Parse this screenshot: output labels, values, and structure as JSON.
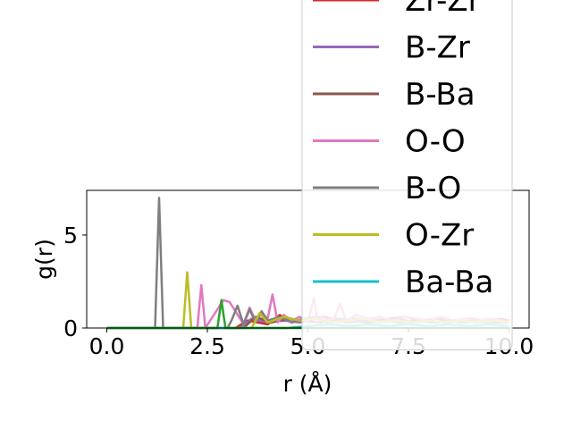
{
  "chart_data": {
    "type": "line",
    "title": "",
    "xlabel": "r (Å)",
    "ylabel": "g(r)",
    "xlim": [
      -0.5,
      10.5
    ],
    "ylim": [
      0,
      7.4
    ],
    "xticks": [
      0.0,
      2.5,
      5.0,
      7.5,
      10.0
    ],
    "xtick_labels": [
      "0.0",
      "2.5",
      "5.0",
      "7.5",
      "10.0"
    ],
    "yticks": [
      0,
      5
    ],
    "ytick_labels": [
      "0",
      "5"
    ],
    "grid": false,
    "legend_position": "upper-right",
    "series": [
      {
        "name": "Zr-Zr",
        "color": "#d62728",
        "x": [
          0,
          3.2,
          3.5,
          4.0,
          4.3,
          4.6,
          5.0,
          5.4,
          5.8,
          6.2,
          6.6,
          7.0,
          7.4,
          7.8,
          8.2,
          8.6,
          9.0,
          9.4,
          9.8,
          10.0
        ],
        "y": [
          0,
          0,
          0.4,
          0.2,
          0.7,
          0.3,
          0.5,
          0.6,
          0.4,
          0.5,
          0.4,
          0.5,
          0.6,
          0.4,
          0.5,
          0.4,
          0.5,
          0.4,
          0.5,
          0.4
        ]
      },
      {
        "name": "B-Zr",
        "color": "#9467bd",
        "x": [
          0,
          3.3,
          3.6,
          4.0,
          4.4,
          4.8,
          5.2,
          5.6,
          6.0,
          6.4,
          6.8,
          7.2,
          7.6,
          8.0,
          8.4,
          8.8,
          9.2,
          9.6,
          10.0
        ],
        "y": [
          0,
          0,
          0.5,
          0.3,
          0.4,
          0.3,
          0.5,
          0.4,
          0.3,
          0.4,
          0.3,
          0.4,
          0.3,
          0.4,
          0.3,
          0.4,
          0.3,
          0.4,
          0.3
        ]
      },
      {
        "name": "B-Ba",
        "color": "#8c564b",
        "x": [
          0,
          3.4,
          3.7,
          4.1,
          4.5,
          4.9,
          5.3,
          5.7,
          6.1,
          6.5,
          6.9,
          7.3,
          7.7,
          8.1,
          8.5,
          8.9,
          9.3,
          9.7,
          10.0
        ],
        "y": [
          0,
          0,
          0.6,
          0.3,
          0.5,
          0.4,
          0.3,
          0.5,
          0.4,
          0.3,
          0.4,
          0.3,
          0.4,
          0.3,
          0.4,
          0.3,
          0.4,
          0.3,
          0.3
        ]
      },
      {
        "name": "O-O",
        "color": "#e377c2",
        "x": [
          0,
          2.25,
          2.35,
          2.45,
          2.9,
          3.05,
          3.2,
          3.4,
          3.55,
          3.7,
          3.85,
          4.0,
          4.12,
          4.25,
          4.4,
          4.6,
          4.8,
          5.0,
          5.15,
          5.25,
          5.35,
          5.5,
          5.65,
          5.8,
          5.95,
          6.2,
          6.5,
          6.8,
          7.1,
          7.4,
          7.7,
          8.0,
          8.3,
          8.6,
          8.9,
          9.2,
          9.5,
          9.8,
          10.0
        ],
        "y": [
          0,
          0,
          2.3,
          0,
          1.5,
          1.4,
          0.9,
          0.2,
          1.1,
          0.4,
          0.8,
          0.5,
          1.8,
          0.3,
          0.7,
          0.4,
          0.6,
          0.3,
          1.6,
          0.3,
          0.6,
          0.4,
          0.5,
          1.3,
          0.4,
          0.7,
          0.5,
          0.6,
          0.4,
          0.6,
          0.5,
          0.4,
          0.6,
          0.4,
          0.5,
          0.4,
          0.5,
          0.4,
          0.3
        ]
      },
      {
        "name": "B-O",
        "color": "#7f7f7f",
        "x": [
          0,
          1.2,
          1.3,
          1.4,
          3.0,
          3.1,
          3.25,
          3.4,
          3.55,
          3.7,
          3.85,
          4.0,
          4.3,
          4.6,
          4.9,
          5.2,
          5.5,
          5.8,
          6.1,
          6.4,
          6.7,
          7.0,
          7.3,
          7.6,
          7.9,
          8.2,
          8.5,
          8.8,
          9.1,
          9.4,
          9.7,
          10.0
        ],
        "y": [
          0,
          0,
          7.0,
          0,
          0,
          0.4,
          1.2,
          0.2,
          1.0,
          0.3,
          0.9,
          0.4,
          0.6,
          0.3,
          0.5,
          0.6,
          0.3,
          0.5,
          0.4,
          0.5,
          0.3,
          0.4,
          0.5,
          0.3,
          0.4,
          0.3,
          0.4,
          0.3,
          0.4,
          0.3,
          0.4,
          0.3
        ]
      },
      {
        "name": "O-Zr",
        "color": "#bcbd22",
        "x": [
          0,
          1.9,
          2.0,
          2.1,
          3.6,
          3.8,
          4.0,
          4.4,
          4.8,
          5.2,
          5.6,
          6.0,
          6.4,
          6.8,
          7.2,
          7.6,
          8.0,
          8.4,
          8.8,
          9.2,
          9.6,
          10.0
        ],
        "y": [
          0,
          0,
          3.0,
          0,
          0,
          0.8,
          0.3,
          0.6,
          0.4,
          0.5,
          0.3,
          0.4,
          0.5,
          0.3,
          0.4,
          0.3,
          0.4,
          0.3,
          0.4,
          0.3,
          0.4,
          0.3
        ]
      },
      {
        "name": "Ba-Ba",
        "color": "#17becf",
        "x": [
          0,
          4.5,
          5.0,
          5.5,
          6.0,
          6.5,
          7.0,
          7.5,
          8.0,
          8.5,
          9.0,
          9.5,
          10.0
        ],
        "y": [
          0,
          0,
          0.1,
          0.2,
          0.1,
          0.2,
          0.1,
          0.2,
          0.1,
          0.2,
          0.1,
          0.2,
          0.1
        ]
      },
      {
        "name": "",
        "color": "#2ca02c",
        "x": [
          0,
          2.75,
          2.85,
          2.95,
          10.0
        ],
        "y": [
          0,
          0,
          1.5,
          0,
          0
        ]
      }
    ]
  }
}
